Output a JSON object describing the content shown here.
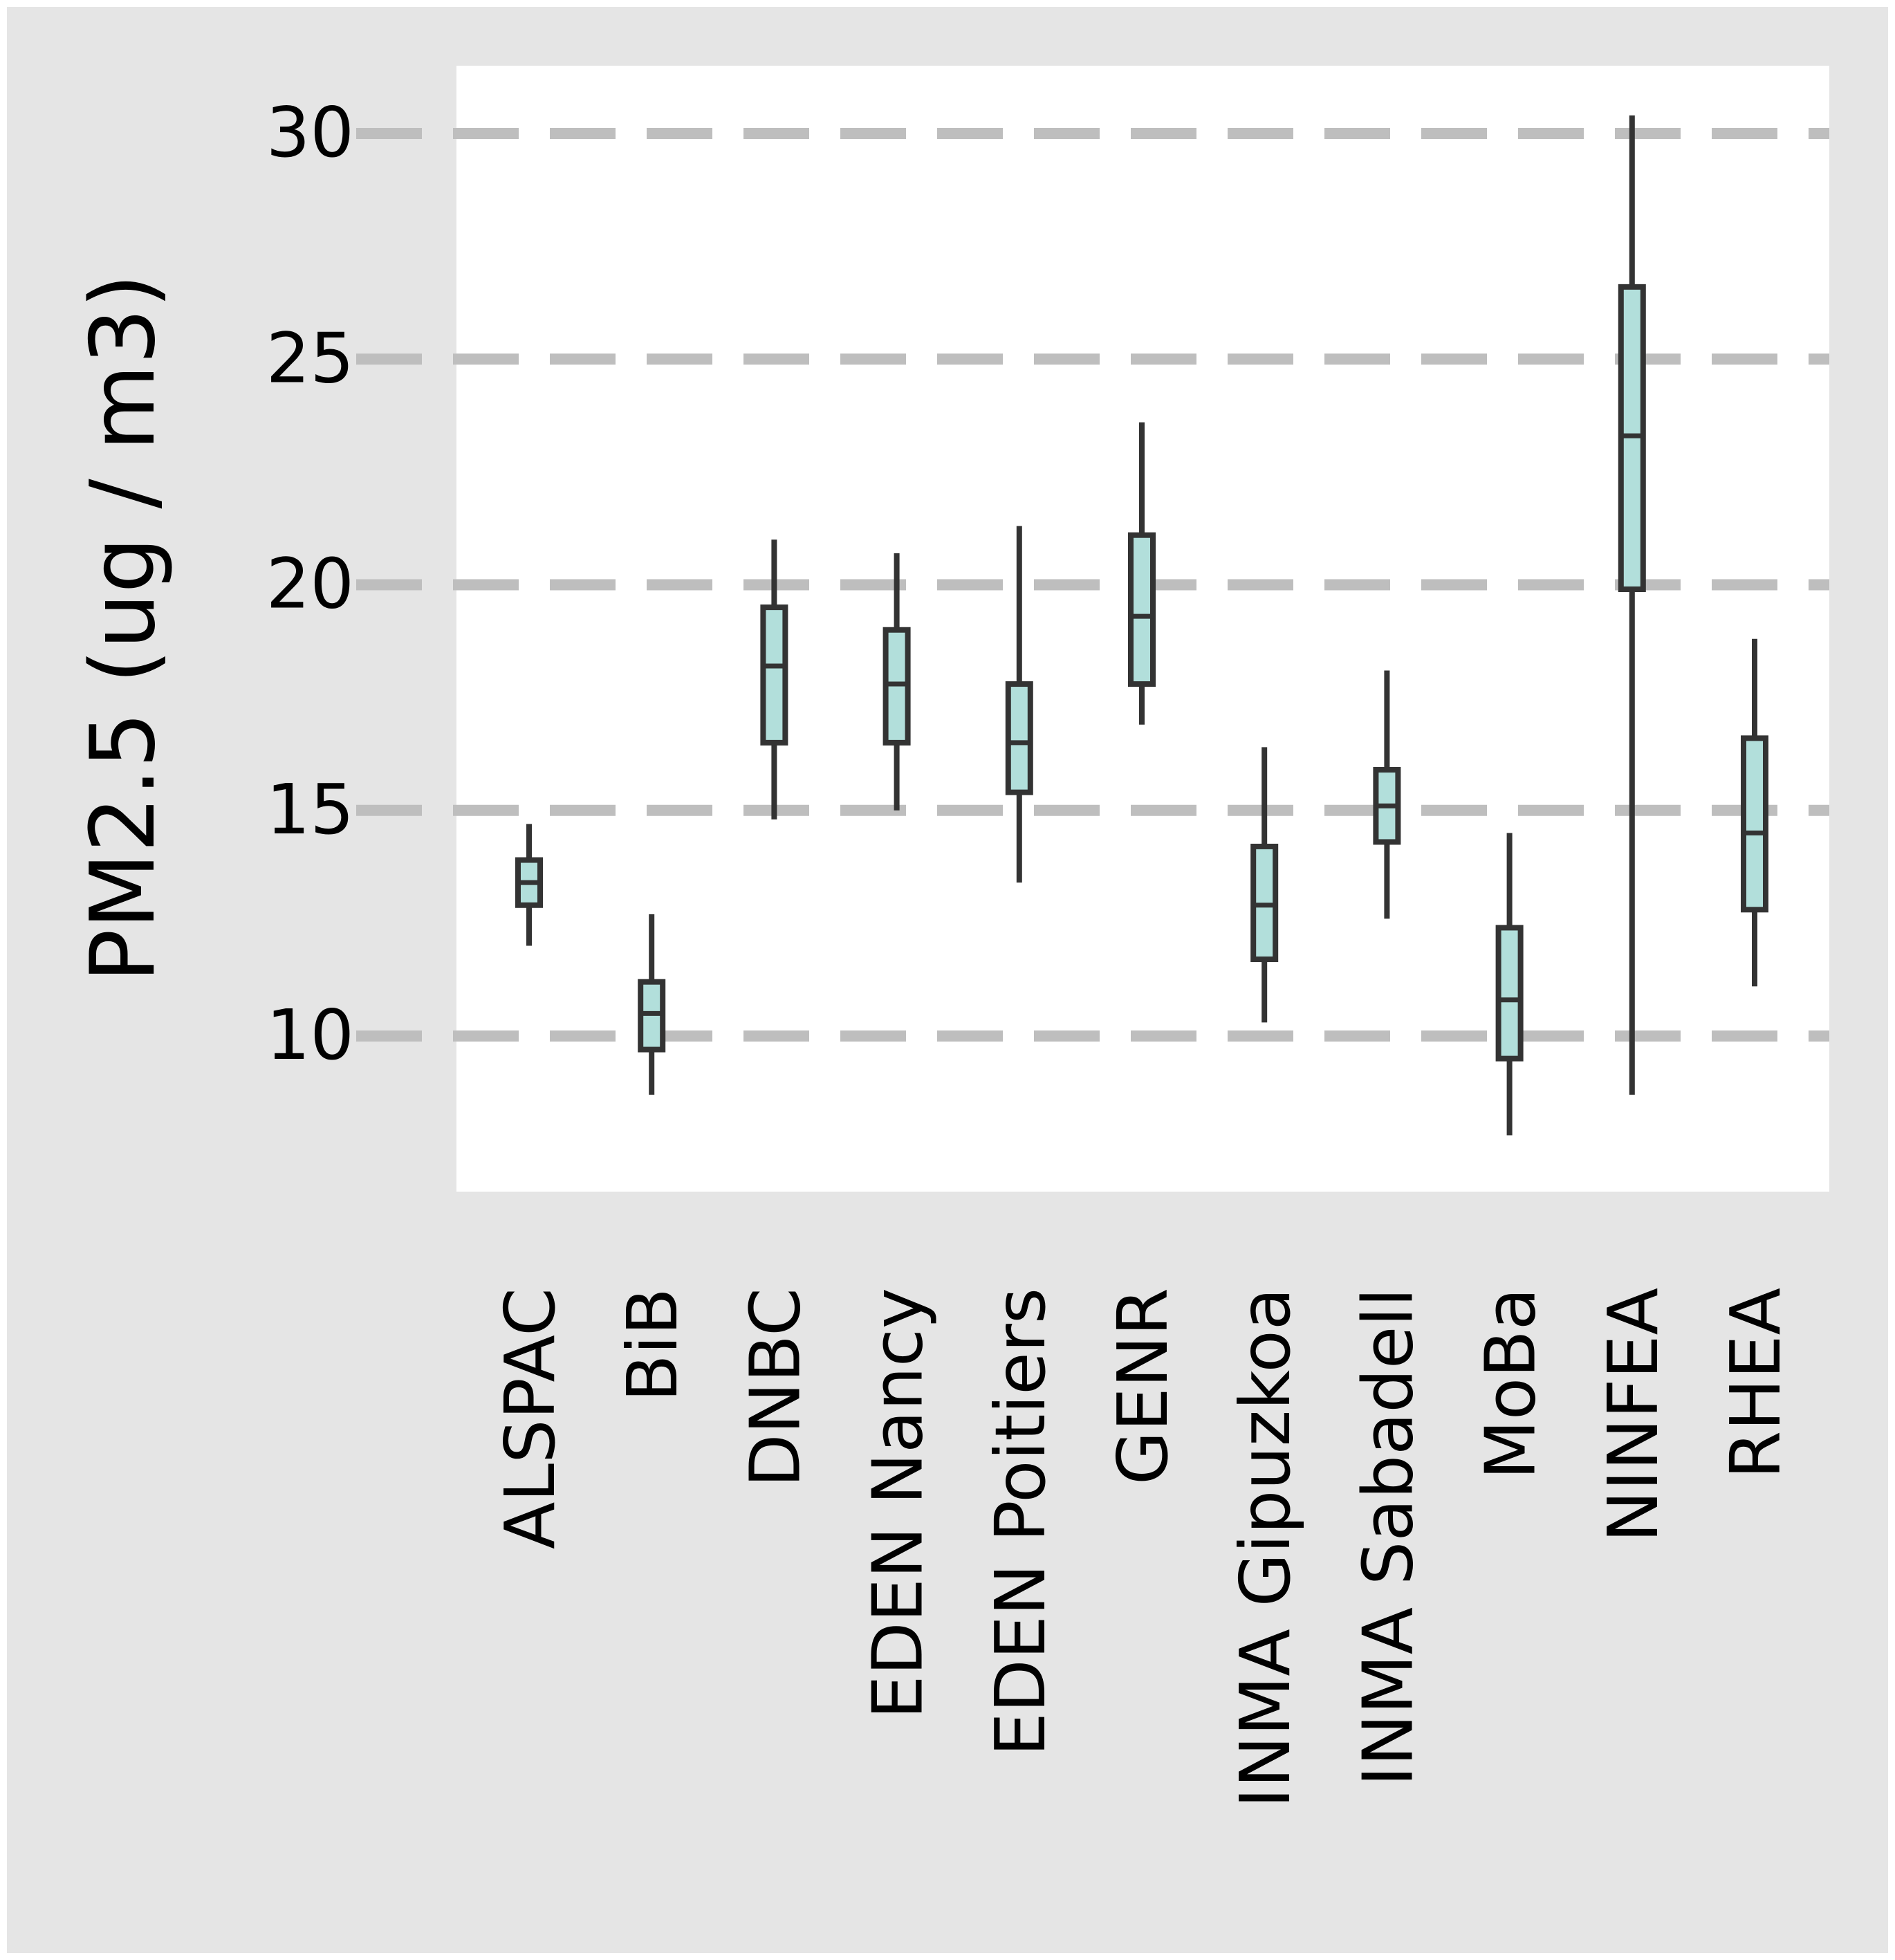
{
  "chart_data": {
    "type": "box",
    "title": "",
    "xlabel": "",
    "ylabel": "PM2.5 (ug / m3)",
    "ylim": [
      7.0,
      32.0
    ],
    "yticks": [
      10,
      15,
      20,
      25,
      30
    ],
    "ytick_labels": [
      "10",
      "15",
      "20",
      "25",
      "30"
    ],
    "grid": "horizontal dashed",
    "legend": "none",
    "colors": {
      "outer_background": "#e5e5e5",
      "panel_background": "#ffffff",
      "box_fill": "#b2dfdb",
      "box_stroke": "#333333",
      "grid": "#bebebe"
    },
    "categories": [
      "ALSPAC",
      "BiB",
      "DNBC",
      "EDEN Nancy",
      "EDEN Poitiers",
      "GENR",
      "INMA Gipuzkoa",
      "INMA Sabadell",
      "MoBa",
      "NINFEA",
      "RHEA"
    ],
    "boxes": [
      {
        "label": "ALSPAC",
        "min": 12.0,
        "q1": 12.9,
        "median": 13.4,
        "q3": 13.9,
        "max": 14.7
      },
      {
        "label": "BiB",
        "min": 8.7,
        "q1": 9.7,
        "median": 10.5,
        "q3": 11.2,
        "max": 12.7
      },
      {
        "label": "DNBC",
        "min": 14.8,
        "q1": 16.5,
        "median": 18.2,
        "q3": 19.5,
        "max": 21.0
      },
      {
        "label": "EDEN Nancy",
        "min": 15.0,
        "q1": 16.5,
        "median": 17.8,
        "q3": 19.0,
        "max": 20.7
      },
      {
        "label": "EDEN Poitiers",
        "min": 13.4,
        "q1": 15.4,
        "median": 16.5,
        "q3": 17.8,
        "max": 21.3
      },
      {
        "label": "GENR",
        "min": 16.9,
        "q1": 17.8,
        "median": 19.3,
        "q3": 21.1,
        "max": 23.6
      },
      {
        "label": "INMA Gipuzkoa",
        "min": 10.3,
        "q1": 11.7,
        "median": 12.9,
        "q3": 14.2,
        "max": 16.4
      },
      {
        "label": "INMA Sabadell",
        "min": 12.6,
        "q1": 14.3,
        "median": 15.1,
        "q3": 15.9,
        "max": 18.1
      },
      {
        "label": "MoBa",
        "min": 7.8,
        "q1": 9.5,
        "median": 10.8,
        "q3": 12.4,
        "max": 14.5
      },
      {
        "label": "NINFEA",
        "min": 8.7,
        "q1": 19.9,
        "median": 23.3,
        "q3": 26.6,
        "max": 30.4
      },
      {
        "label": "RHEA",
        "min": 11.1,
        "q1": 12.8,
        "median": 14.5,
        "q3": 16.6,
        "max": 18.8
      }
    ]
  }
}
